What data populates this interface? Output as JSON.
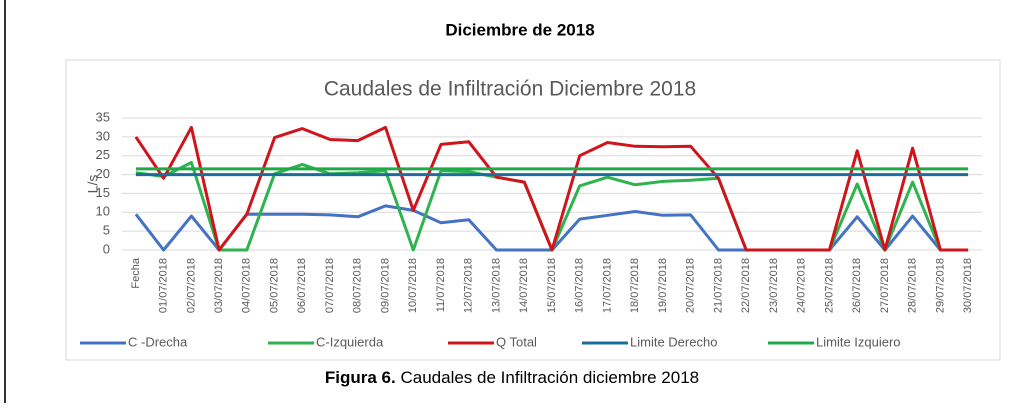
{
  "header": "Diciembre de 2018",
  "caption": {
    "label": "Figura 6.",
    "text": "Caudales de Infiltración diciembre 2018"
  },
  "chart_data": {
    "type": "line",
    "title": "Caudales de Infiltración Diciembre 2018",
    "y_label": "L/s",
    "categories": [
      "Fecha",
      "01/07/2018",
      "02/07/2018",
      "03/07/2018",
      "04/07/2018",
      "05/07/2018",
      "06/07/2018",
      "07/07/2018",
      "08/07/2018",
      "09/07/2018",
      "10/07/2018",
      "11/07/2018",
      "12/07/2018",
      "13/07/2018",
      "14/07/2018",
      "15/07/2018",
      "16/07/2018",
      "17/07/2018",
      "18/07/2018",
      "19/07/2018",
      "20/07/2018",
      "21/07/2018",
      "22/07/2018",
      "23/07/2018",
      "24/07/2018",
      "25/07/2018",
      "26/07/2018",
      "27/07/2018",
      "28/07/2018",
      "29/07/2018",
      "30/07/2018"
    ],
    "series": [
      {
        "name": "C -Drecha",
        "color": "#4472c4",
        "values": [
          9.5,
          0,
          9,
          0,
          9.5,
          9.5,
          9.5,
          9.3,
          8.8,
          11.7,
          10.5,
          7.2,
          8,
          0,
          0,
          0,
          8.2,
          9.2,
          10.2,
          9.2,
          9.3,
          0,
          0,
          0,
          0,
          0,
          8.8,
          0,
          9,
          0,
          0
        ]
      },
      {
        "name": "C-Izquierda",
        "color": "#2fb34e",
        "values": [
          20.5,
          19.5,
          23.2,
          0,
          0,
          20.2,
          22.7,
          20.2,
          20.5,
          21,
          0,
          21,
          20.8,
          19.3,
          18,
          0,
          17,
          19.3,
          17.3,
          18.2,
          18.5,
          19,
          0,
          0,
          0,
          0,
          17.5,
          0,
          18,
          0,
          0
        ]
      },
      {
        "name": "Q Total",
        "color": "#d0141b",
        "values": [
          30,
          19,
          32.5,
          0,
          9.5,
          29.8,
          32.2,
          29.3,
          29,
          32.5,
          10.5,
          28,
          28.7,
          19.3,
          18,
          0,
          25,
          28.5,
          27.5,
          27.4,
          27.5,
          19,
          0,
          0,
          0,
          0,
          26.3,
          0,
          27,
          0,
          0
        ]
      },
      {
        "name": "Limite Derecho",
        "color": "#1d6d9c",
        "values": [
          20,
          20,
          20,
          20,
          20,
          20,
          20,
          20,
          20,
          20,
          20,
          20,
          20,
          20,
          20,
          20,
          20,
          20,
          20,
          20,
          20,
          20,
          20,
          20,
          20,
          20,
          20,
          20,
          20,
          20,
          20
        ]
      },
      {
        "name": "Limite Izquiero",
        "color": "#1faa4a",
        "values": [
          21.5,
          21.5,
          21.5,
          21.5,
          21.5,
          21.5,
          21.5,
          21.5,
          21.5,
          21.5,
          21.5,
          21.5,
          21.5,
          21.5,
          21.5,
          21.5,
          21.5,
          21.5,
          21.5,
          21.5,
          21.5,
          21.5,
          21.5,
          21.5,
          21.5,
          21.5,
          21.5,
          21.5,
          21.5,
          21.5,
          21.5
        ]
      }
    ],
    "ylim": [
      0,
      35
    ],
    "yticks": [
      0,
      5,
      10,
      15,
      20,
      25,
      30,
      35
    ],
    "grid": true,
    "legend": "bottom"
  }
}
